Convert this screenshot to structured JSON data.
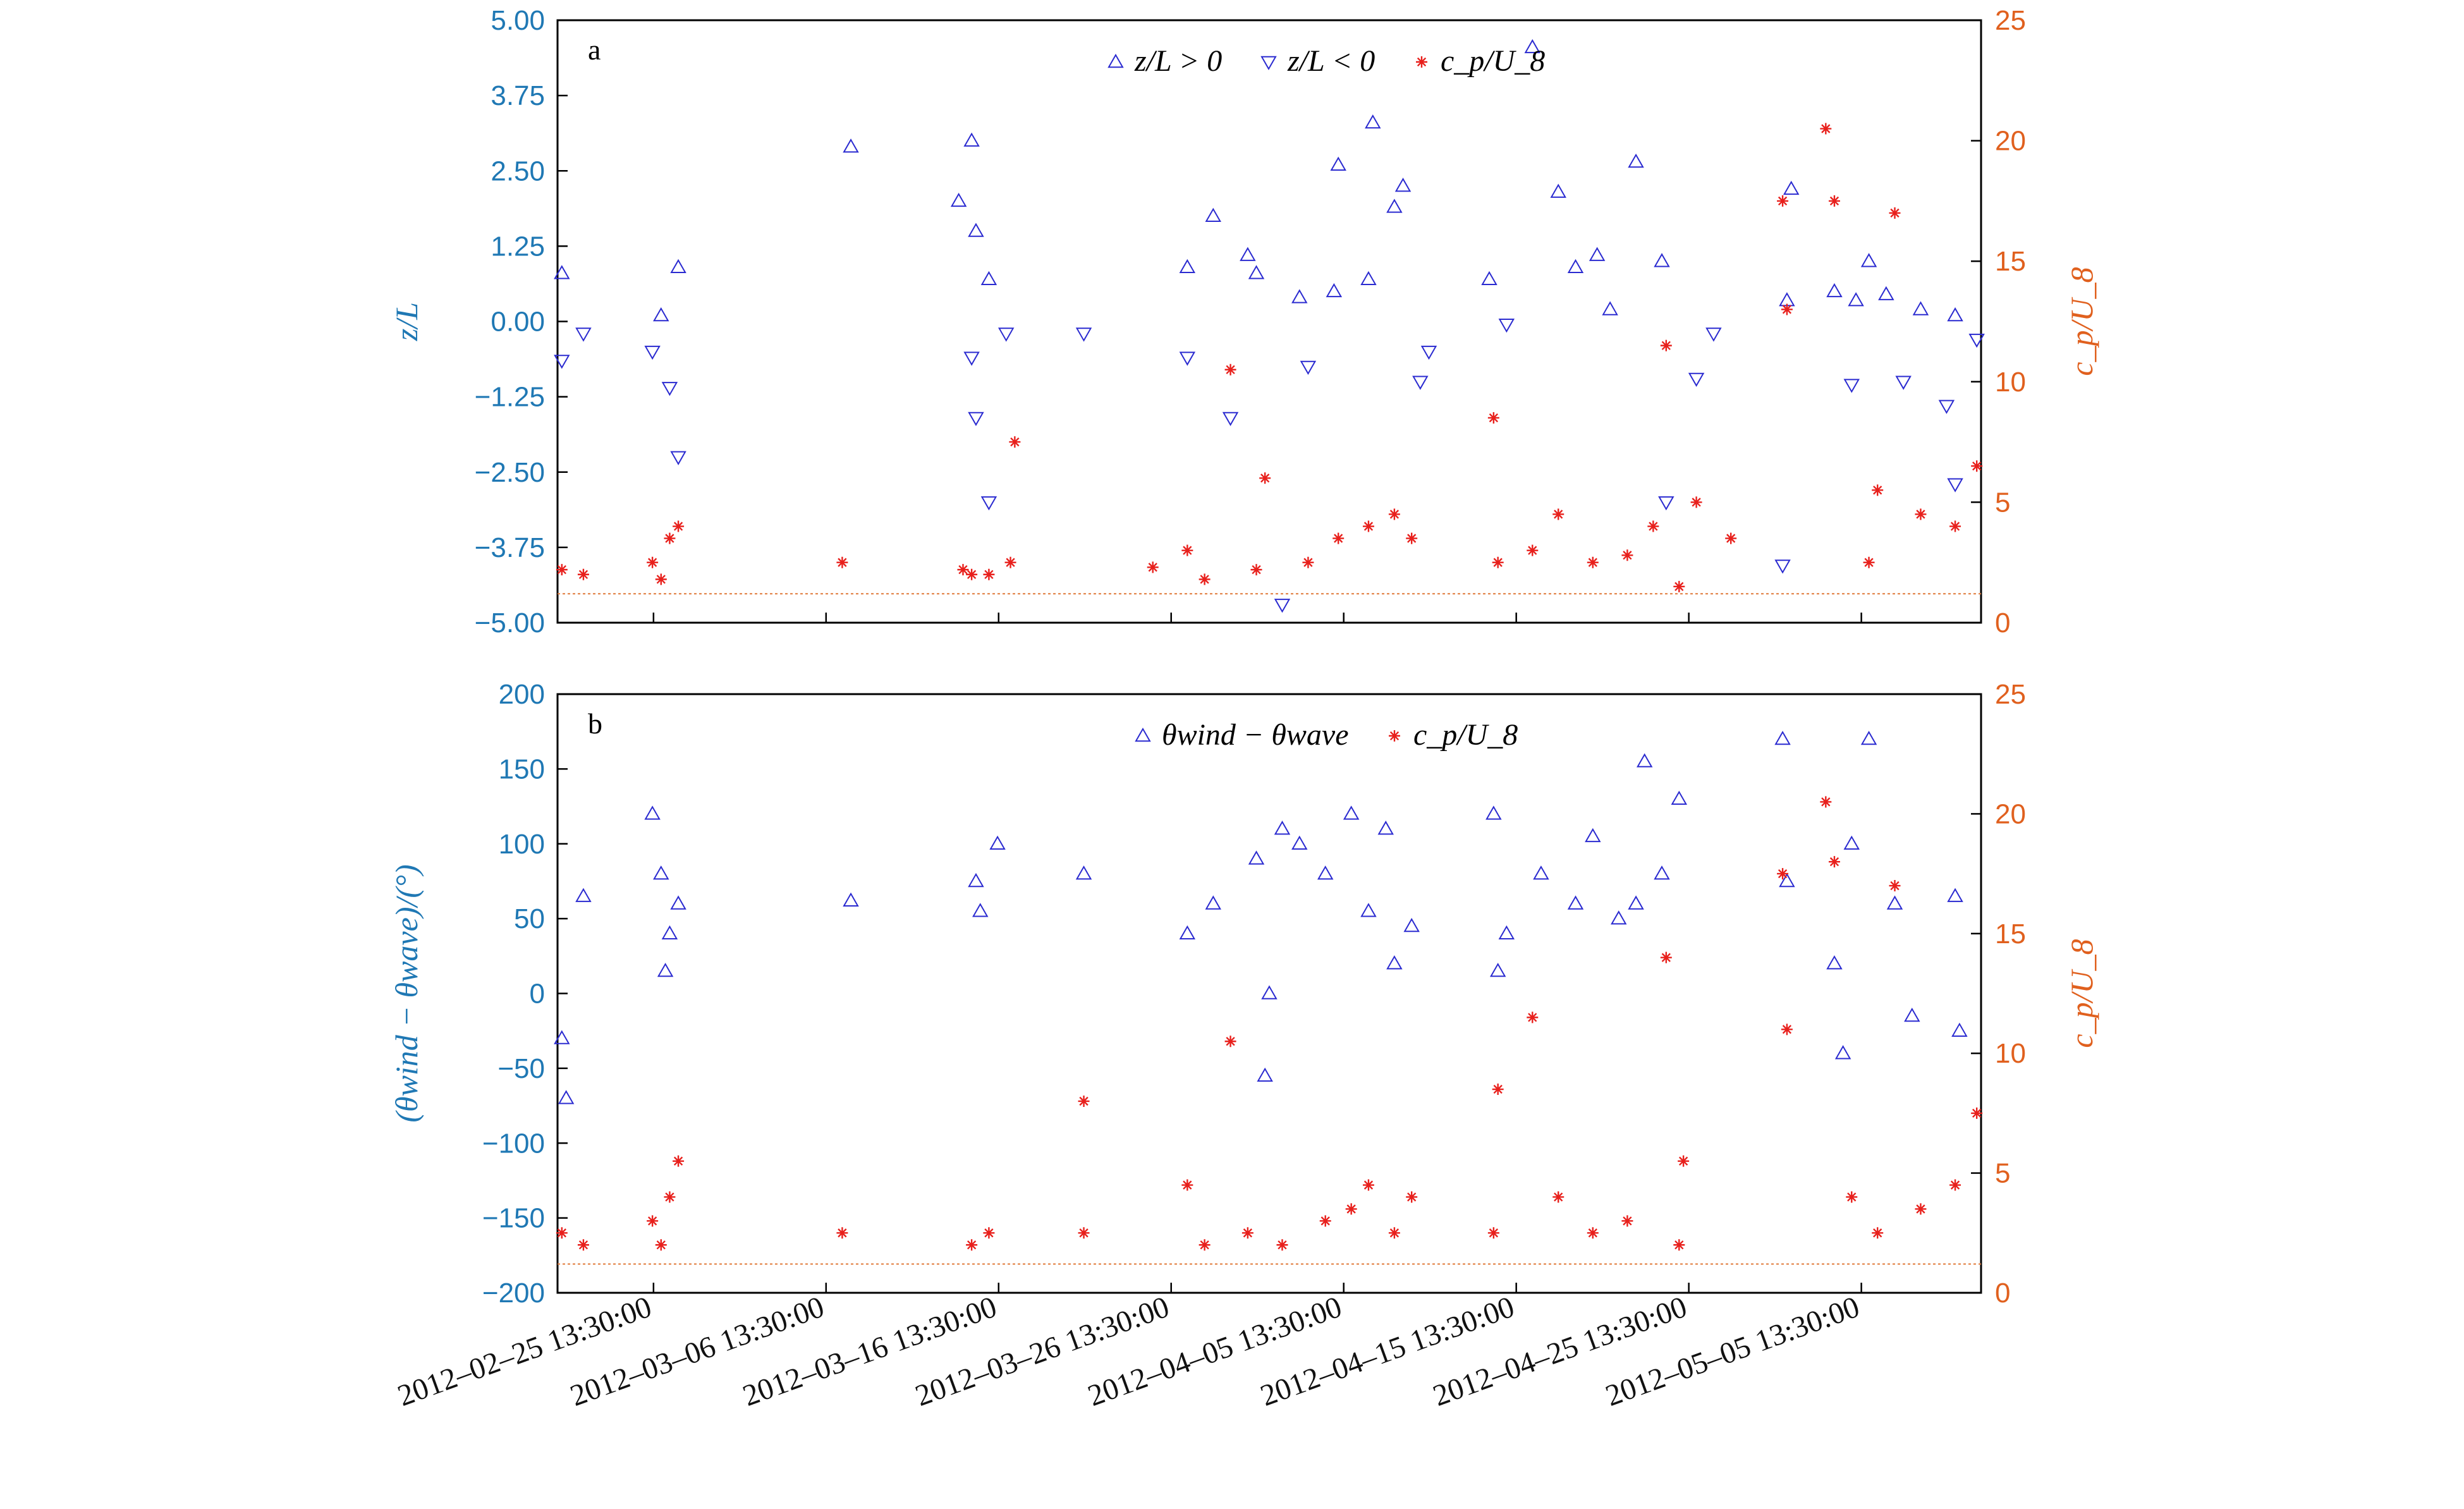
{
  "chart_data": [
    {
      "panel_label": "a",
      "type": "scatter",
      "x_type": "datetime",
      "x_ticks": [
        "2012–02–25 13:30:00",
        "2012–03–06 13:30:00",
        "2012–03–16 13:30:00",
        "2012–03–26 13:30:00",
        "2012–04–05 13:30:00",
        "2012–04–15 13:30:00",
        "2012–04–25 13:30:00",
        "2012–05–05 13:30:00"
      ],
      "xlim": [
        "2012-02-20 00:00",
        "2012-05-12 12:00"
      ],
      "ylabel_left": "z/L",
      "ylabel_right": "c_p/U_8",
      "ylim_left": [
        -5,
        5
      ],
      "yticks_left": [
        "5.00",
        "3.75",
        "2.50",
        "1.25",
        "0.00",
        "−1.25",
        "−2.50",
        "−3.75",
        "−5.00"
      ],
      "ylim_right": [
        0,
        25
      ],
      "yticks_right": [
        "25",
        "20",
        "15",
        "10",
        "5",
        "0"
      ],
      "legend": [
        "z/L > 0",
        "z/L < 0",
        "c_p/U_8"
      ],
      "legend_position": "top-center",
      "reference_line_right": 1.2,
      "series": [
        {
          "name": "z/L > 0",
          "marker": "triangle-up",
          "color": "#2a2ad0",
          "axis": "left",
          "x": [
            "2012-02-20 06:00",
            "2012-02-26 00:00",
            "2012-02-27 00:00",
            "2012-03-08 00:00",
            "2012-03-14 06:00",
            "2012-03-15 00:00",
            "2012-03-15 06:00",
            "2012-03-16 00:00",
            "2012-03-27 12:00",
            "2012-03-29 00:00",
            "2012-03-31 00:00",
            "2012-03-31 12:00",
            "2012-04-03 00:00",
            "2012-04-05 00:00",
            "2012-04-05 06:00",
            "2012-04-07 00:00",
            "2012-04-07 06:00",
            "2012-04-08 12:00",
            "2012-04-09 00:00",
            "2012-04-14 00:00",
            "2012-04-16 12:00",
            "2012-04-18 00:00",
            "2012-04-19 00:00",
            "2012-04-20 06:00",
            "2012-04-21 00:00",
            "2012-04-22 12:00",
            "2012-04-24 00:00",
            "2012-05-01 06:00",
            "2012-05-01 12:00",
            "2012-05-04 00:00",
            "2012-05-05 06:00",
            "2012-05-06 00:00",
            "2012-05-07 00:00",
            "2012-05-09 00:00",
            "2012-05-11 00:00"
          ],
          "y": [
            0.8,
            0.1,
            0.9,
            2.9,
            2.0,
            3.0,
            1.5,
            0.7,
            0.9,
            1.75,
            1.1,
            0.8,
            0.4,
            0.5,
            2.6,
            0.7,
            3.3,
            1.9,
            2.25,
            0.7,
            4.55,
            2.15,
            0.9,
            1.1,
            0.2,
            2.65,
            1.0,
            0.35,
            2.2,
            0.5,
            0.35,
            1.0,
            0.45,
            0.2,
            0.1
          ]
        },
        {
          "name": "z/L < 0",
          "marker": "triangle-down",
          "color": "#2a2ad0",
          "axis": "left",
          "x": [
            "2012-02-20 06:00",
            "2012-02-21 12:00",
            "2012-02-25 12:00",
            "2012-02-26 12:00",
            "2012-02-27 00:00",
            "2012-03-15 00:00",
            "2012-03-15 06:00",
            "2012-03-16 00:00",
            "2012-03-17 00:00",
            "2012-03-21 12:00",
            "2012-03-27 12:00",
            "2012-03-30 00:00",
            "2012-04-02 00:00",
            "2012-04-03 12:00",
            "2012-04-10 00:00",
            "2012-04-10 12:00",
            "2012-04-15 00:00",
            "2012-04-24 06:00",
            "2012-04-26 00:00",
            "2012-04-27 00:00",
            "2012-05-01 00:00",
            "2012-05-05 00:00",
            "2012-05-08 00:00",
            "2012-05-10 12:00",
            "2012-05-11 00:00",
            "2012-05-12 06:00"
          ],
          "y": [
            -0.65,
            -0.2,
            -0.5,
            -1.1,
            -2.25,
            -0.6,
            -1.6,
            -3.0,
            -0.2,
            -0.2,
            -0.6,
            -1.6,
            -4.7,
            -0.75,
            -1.0,
            -0.5,
            -0.05,
            -3.0,
            -0.95,
            -0.2,
            -4.05,
            -1.05,
            -1.0,
            -1.4,
            -2.7,
            -0.3
          ]
        },
        {
          "name": "c_p/U_8",
          "marker": "asterisk",
          "color": "#e8201c",
          "axis": "right",
          "x": [
            "2012-02-20 06:00",
            "2012-02-21 12:00",
            "2012-02-25 12:00",
            "2012-02-26 00:00",
            "2012-02-26 12:00",
            "2012-02-27 00:00",
            "2012-03-07 12:00",
            "2012-03-14 12:00",
            "2012-03-15 00:00",
            "2012-03-16 00:00",
            "2012-03-17 06:00",
            "2012-03-17 12:00",
            "2012-03-25 12:00",
            "2012-03-27 12:00",
            "2012-03-28 12:00",
            "2012-03-30 00:00",
            "2012-03-31 12:00",
            "2012-04-01 00:00",
            "2012-04-03 12:00",
            "2012-04-05 06:00",
            "2012-04-07 00:00",
            "2012-04-08 12:00",
            "2012-04-09 12:00",
            "2012-04-14 06:00",
            "2012-04-14 12:00",
            "2012-04-16 12:00",
            "2012-04-18 00:00",
            "2012-04-20 00:00",
            "2012-04-22 00:00",
            "2012-04-23 12:00",
            "2012-04-24 06:00",
            "2012-04-25 00:00",
            "2012-04-26 00:00",
            "2012-04-28 00:00",
            "2012-05-01 00:00",
            "2012-05-01 06:00",
            "2012-05-03 12:00",
            "2012-05-04 00:00",
            "2012-05-06 00:00",
            "2012-05-06 12:00",
            "2012-05-07 12:00",
            "2012-05-09 00:00",
            "2012-05-11 00:00",
            "2012-05-12 06:00"
          ],
          "y": [
            2.2,
            2.0,
            2.5,
            1.8,
            3.5,
            4.0,
            2.5,
            2.2,
            2.0,
            2.0,
            2.5,
            7.5,
            2.3,
            3.0,
            1.8,
            10.5,
            2.2,
            6.0,
            2.5,
            3.5,
            4.0,
            4.5,
            3.5,
            8.5,
            2.5,
            3.0,
            4.5,
            2.5,
            2.8,
            4.0,
            11.5,
            1.5,
            5.0,
            3.5,
            17.5,
            13.0,
            20.5,
            17.5,
            2.5,
            5.5,
            17.0,
            4.5,
            4.0,
            6.5
          ]
        }
      ]
    },
    {
      "panel_label": "b",
      "type": "scatter",
      "x_type": "datetime",
      "x_ticks": [
        "2012–02–25 13:30:00",
        "2012–03–06 13:30:00",
        "2012–03–16 13:30:00",
        "2012–03–26 13:30:00",
        "2012–04–05 13:30:00",
        "2012–04–15 13:30:00",
        "2012–04–25 13:30:00",
        "2012–05–05 13:30:00"
      ],
      "xlim": [
        "2012-02-20 00:00",
        "2012-05-12 12:00"
      ],
      "ylabel_left": "(θwind − θwave)/(°)",
      "ylabel_right": "c_p/U_8",
      "ylim_left": [
        -200,
        200
      ],
      "yticks_left": [
        "200",
        "150",
        "100",
        "50",
        "0",
        "−50",
        "−100",
        "−150",
        "−200"
      ],
      "ylim_right": [
        0,
        25
      ],
      "yticks_right": [
        "25",
        "20",
        "15",
        "10",
        "5",
        "0"
      ],
      "legend": [
        "θwind − θwave",
        "c_p/U_8"
      ],
      "legend_position": "top-center",
      "reference_line_right": 1.2,
      "series": [
        {
          "name": "θwind − θwave",
          "marker": "triangle-up",
          "color": "#2a2ad0",
          "axis": "left",
          "x": [
            "2012-02-20 06:00",
            "2012-02-20 12:00",
            "2012-02-21 12:00",
            "2012-02-25 12:00",
            "2012-02-26 00:00",
            "2012-02-26 12:00",
            "2012-02-27 00:00",
            "2012-02-26 06:00",
            "2012-03-08 00:00",
            "2012-03-15 06:00",
            "2012-03-15 12:00",
            "2012-03-16 12:00",
            "2012-03-21 12:00",
            "2012-03-27 12:00",
            "2012-03-29 00:00",
            "2012-03-31 12:00",
            "2012-04-01 00:00",
            "2012-04-01 06:00",
            "2012-04-02 00:00",
            "2012-04-03 00:00",
            "2012-04-04 12:00",
            "2012-04-06 00:00",
            "2012-04-07 00:00",
            "2012-04-08 00:00",
            "2012-04-08 12:00",
            "2012-04-09 12:00",
            "2012-04-14 06:00",
            "2012-04-14 12:00",
            "2012-04-15 00:00",
            "2012-04-17 00:00",
            "2012-04-19 00:00",
            "2012-04-20 00:00",
            "2012-04-21 12:00",
            "2012-04-22 12:00",
            "2012-04-23 00:00",
            "2012-04-24 00:00",
            "2012-04-25 00:00",
            "2012-05-01 00:00",
            "2012-05-01 06:00",
            "2012-05-04 00:00",
            "2012-05-04 12:00",
            "2012-05-05 00:00",
            "2012-05-06 00:00",
            "2012-05-07 12:00",
            "2012-05-08 12:00",
            "2012-05-11 00:00",
            "2012-05-11 06:00"
          ],
          "y": [
            -30,
            -70,
            65,
            120,
            80,
            40,
            60,
            15,
            62,
            75,
            55,
            100,
            80,
            40,
            60,
            90,
            -55,
            0,
            110,
            100,
            80,
            120,
            55,
            110,
            20,
            45,
            120,
            15,
            40,
            80,
            60,
            105,
            50,
            60,
            155,
            80,
            130,
            170,
            75,
            20,
            -40,
            100,
            170,
            60,
            -15,
            65,
            -25
          ]
        },
        {
          "name": "c_p/U_8",
          "marker": "asterisk",
          "color": "#e8201c",
          "axis": "right",
          "x": [
            "2012-02-20 06:00",
            "2012-02-21 12:00",
            "2012-02-25 12:00",
            "2012-02-26 00:00",
            "2012-02-26 12:00",
            "2012-02-27 00:00",
            "2012-03-07 12:00",
            "2012-03-15 00:00",
            "2012-03-16 00:00",
            "2012-03-21 12:00",
            "2012-03-21 12:00",
            "2012-03-27 12:00",
            "2012-03-28 12:00",
            "2012-03-30 00:00",
            "2012-03-31 00:00",
            "2012-04-02 00:00",
            "2012-04-04 12:00",
            "2012-04-06 00:00",
            "2012-04-07 00:00",
            "2012-04-08 12:00",
            "2012-04-09 12:00",
            "2012-04-14 12:00",
            "2012-04-14 06:00",
            "2012-04-16 12:00",
            "2012-04-18 00:00",
            "2012-04-20 00:00",
            "2012-04-22 00:00",
            "2012-04-24 06:00",
            "2012-04-25 00:00",
            "2012-04-25 06:00",
            "2012-05-01 00:00",
            "2012-05-01 06:00",
            "2012-05-03 12:00",
            "2012-05-04 00:00",
            "2012-05-05 00:00",
            "2012-05-06 12:00",
            "2012-05-07 12:00",
            "2012-05-09 00:00",
            "2012-05-11 00:00",
            "2012-05-12 06:00"
          ],
          "y": [
            2.5,
            2.0,
            3.0,
            2.0,
            4.0,
            5.5,
            2.5,
            2.0,
            2.5,
            8.0,
            2.5,
            4.5,
            2.0,
            10.5,
            2.5,
            2.0,
            3.0,
            3.5,
            4.5,
            2.5,
            4.0,
            8.5,
            2.5,
            11.5,
            4.0,
            2.5,
            3.0,
            14.0,
            2.0,
            5.5,
            17.5,
            11.0,
            20.5,
            18.0,
            4.0,
            2.5,
            17.0,
            3.5,
            4.5,
            7.5
          ]
        }
      ]
    }
  ]
}
